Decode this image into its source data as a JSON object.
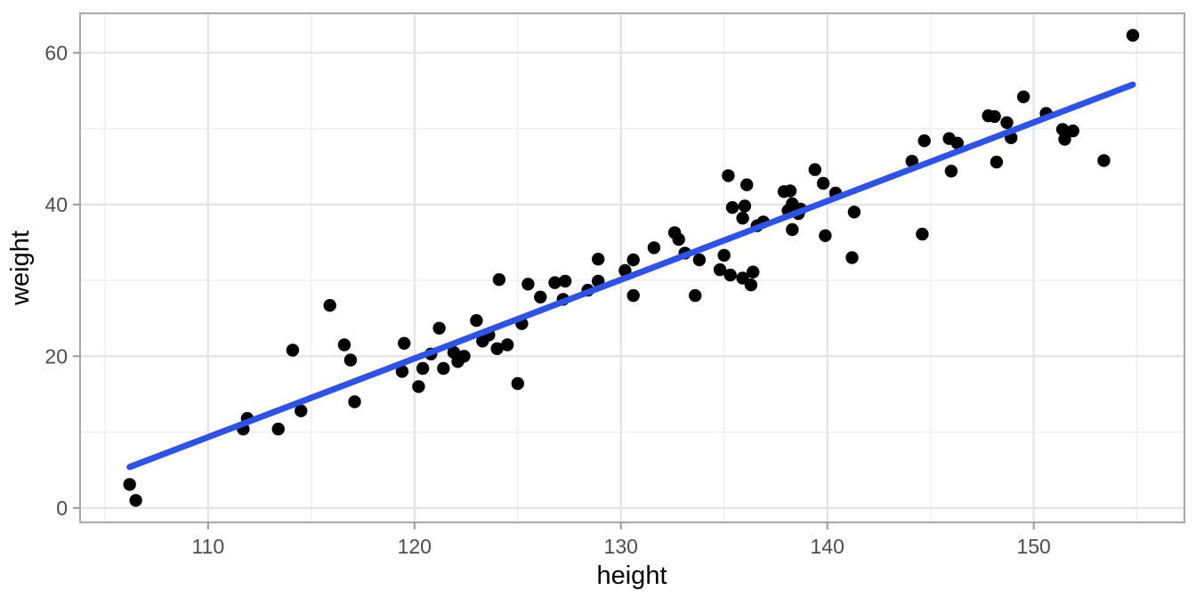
{
  "chart_data": {
    "type": "scatter",
    "title": "",
    "xlabel": "height",
    "ylabel": "weight",
    "x_ticks": [
      110,
      120,
      130,
      140,
      150
    ],
    "x_minor_ticks": [
      105,
      115,
      125,
      135,
      145,
      155
    ],
    "y_ticks": [
      0,
      20,
      40,
      60
    ],
    "y_minor_ticks": [
      10,
      30,
      50
    ],
    "xlim": [
      103.8,
      157.3
    ],
    "ylim": [
      -1.9,
      65.2
    ],
    "grid": "major+minor",
    "legend_position": "none",
    "series": [
      {
        "name": "observations",
        "type": "points",
        "color": "#000000",
        "points": [
          [
            106.2,
            3.1
          ],
          [
            106.5,
            1.0
          ],
          [
            111.9,
            11.8
          ],
          [
            111.7,
            10.4
          ],
          [
            113.4,
            10.4
          ],
          [
            114.5,
            12.8
          ],
          [
            114.1,
            20.8
          ],
          [
            115.9,
            26.7
          ],
          [
            116.6,
            21.5
          ],
          [
            116.9,
            19.5
          ],
          [
            117.1,
            14.0
          ],
          [
            119.5,
            21.7
          ],
          [
            119.4,
            18.0
          ],
          [
            120.2,
            16.0
          ],
          [
            120.4,
            18.4
          ],
          [
            120.8,
            20.3
          ],
          [
            121.2,
            23.7
          ],
          [
            121.4,
            18.4
          ],
          [
            121.9,
            20.5
          ],
          [
            122.4,
            20.0
          ],
          [
            122.1,
            19.3
          ],
          [
            123.0,
            24.7
          ],
          [
            123.3,
            22.0
          ],
          [
            123.6,
            22.8
          ],
          [
            124.0,
            21.0
          ],
          [
            124.5,
            21.5
          ],
          [
            125.2,
            24.3
          ],
          [
            125.0,
            16.4
          ],
          [
            124.1,
            30.1
          ],
          [
            125.5,
            29.5
          ],
          [
            126.8,
            29.7
          ],
          [
            127.3,
            29.9
          ],
          [
            126.1,
            27.8
          ],
          [
            127.2,
            27.5
          ],
          [
            128.4,
            28.7
          ],
          [
            128.9,
            29.9
          ],
          [
            130.2,
            31.3
          ],
          [
            130.6,
            28.0
          ],
          [
            133.6,
            28.0
          ],
          [
            134.8,
            31.4
          ],
          [
            135.3,
            30.7
          ],
          [
            135.9,
            30.3
          ],
          [
            136.4,
            31.1
          ],
          [
            136.3,
            29.4
          ],
          [
            128.9,
            32.8
          ],
          [
            130.6,
            32.7
          ],
          [
            131.6,
            34.3
          ],
          [
            132.6,
            36.3
          ],
          [
            132.8,
            35.4
          ],
          [
            133.1,
            33.6
          ],
          [
            133.8,
            32.7
          ],
          [
            135.0,
            33.3
          ],
          [
            135.2,
            43.8
          ],
          [
            136.1,
            42.6
          ],
          [
            135.4,
            39.6
          ],
          [
            136.0,
            39.8
          ],
          [
            135.9,
            38.2
          ],
          [
            136.9,
            37.7
          ],
          [
            136.6,
            37.2
          ],
          [
            137.9,
            41.7
          ],
          [
            138.2,
            41.8
          ],
          [
            138.3,
            40.1
          ],
          [
            138.1,
            39.2
          ],
          [
            138.6,
            38.8
          ],
          [
            138.7,
            39.4
          ],
          [
            138.3,
            36.7
          ],
          [
            139.4,
            44.6
          ],
          [
            139.8,
            42.8
          ],
          [
            139.9,
            35.9
          ],
          [
            140.4,
            41.5
          ],
          [
            141.3,
            39.0
          ],
          [
            141.2,
            33.0
          ],
          [
            144.6,
            36.1
          ],
          [
            144.1,
            45.7
          ],
          [
            144.7,
            48.4
          ],
          [
            145.9,
            48.7
          ],
          [
            146.3,
            48.1
          ],
          [
            146.0,
            44.4
          ],
          [
            147.8,
            51.7
          ],
          [
            148.1,
            51.6
          ],
          [
            148.7,
            50.8
          ],
          [
            148.9,
            48.8
          ],
          [
            148.2,
            45.6
          ],
          [
            149.5,
            54.2
          ],
          [
            150.6,
            52.0
          ],
          [
            151.4,
            49.9
          ],
          [
            151.9,
            49.7
          ],
          [
            151.5,
            48.6
          ],
          [
            153.4,
            45.8
          ],
          [
            154.8,
            62.3
          ]
        ]
      },
      {
        "name": "linear-fit",
        "type": "line",
        "color": "#2E53E2",
        "x": [
          106.2,
          154.8
        ],
        "y": [
          5.4,
          55.8
        ]
      }
    ]
  },
  "style": {
    "background": "#FFFFFF",
    "panel_background": "#FFFFFF",
    "panel_border": "#A9A9A9",
    "grid_major": "#E3E3E3",
    "grid_minor": "#EFEFEF",
    "tick_color": "#999999",
    "tick_label_color": "#4D4D4D",
    "axis_title_color": "#000000",
    "point_color": "#000000",
    "line_color": "#2E53E2"
  }
}
